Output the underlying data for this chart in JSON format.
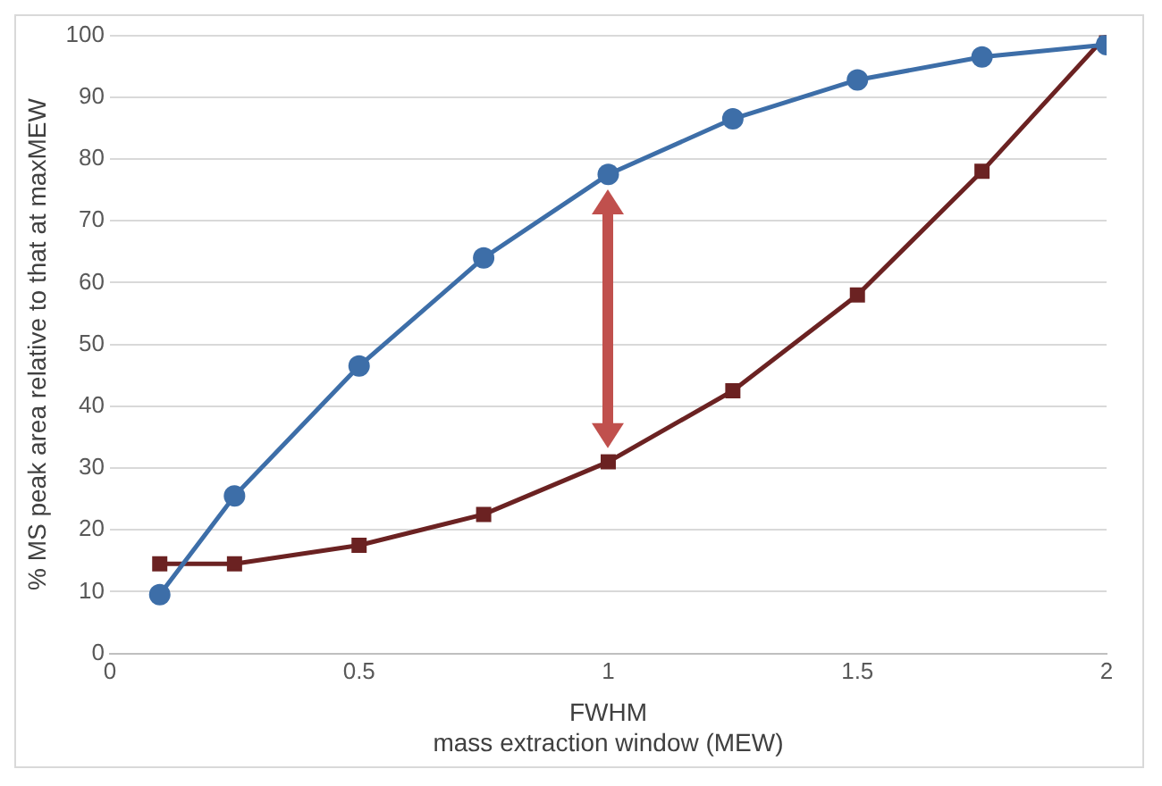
{
  "chart_data": {
    "type": "line",
    "xlabel": "FWHM\nmass extraction window (MEW)",
    "ylabel": "% MS peak area relative to that at maxMEW",
    "x": [
      0.1,
      0.25,
      0.5,
      0.75,
      1,
      1.25,
      1.5,
      1.75,
      2
    ],
    "series": [
      {
        "color": "#3d6ea8",
        "marker": "circle",
        "values": [
          9.5,
          25.5,
          46.5,
          64,
          77.5,
          86.5,
          92.8,
          96.5,
          98.5
        ]
      },
      {
        "color": "#6b2222",
        "marker": "square",
        "values": [
          14.5,
          14.5,
          17.5,
          22.5,
          31,
          42.5,
          58,
          78,
          100
        ]
      }
    ],
    "xlim": [
      0,
      2
    ],
    "xticks": [
      0,
      0.5,
      1,
      1.5,
      2
    ],
    "ylim": [
      0,
      100
    ],
    "yticks": [
      0,
      10,
      20,
      30,
      40,
      50,
      60,
      70,
      80,
      90,
      100
    ],
    "grid": "y",
    "legend": false,
    "line_style": "solid"
  }
}
